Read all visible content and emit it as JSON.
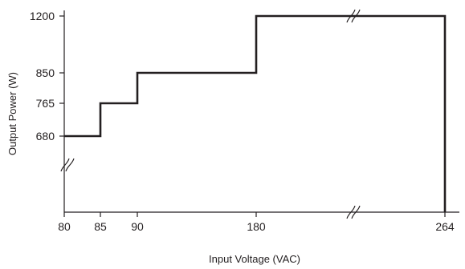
{
  "chart_data": {
    "type": "line",
    "step": true,
    "title": "",
    "xlabel": "Input Voltage (VAC)",
    "ylabel": "Output Power (W)",
    "x_ticks": [
      80,
      85,
      90,
      180,
      264
    ],
    "y_ticks": [
      680,
      765,
      850,
      1200
    ],
    "axis_breaks": {
      "x": true,
      "y": true
    },
    "grid": false,
    "series": [
      {
        "points": [
          [
            80,
            680
          ],
          [
            85,
            680
          ],
          [
            85,
            765
          ],
          [
            90,
            765
          ],
          [
            90,
            850
          ],
          [
            180,
            850
          ],
          [
            180,
            1200
          ],
          [
            264,
            1200
          ],
          [
            264,
            0
          ]
        ]
      }
    ],
    "colors": {
      "line": "#231f20",
      "axis": "#231f20"
    }
  }
}
